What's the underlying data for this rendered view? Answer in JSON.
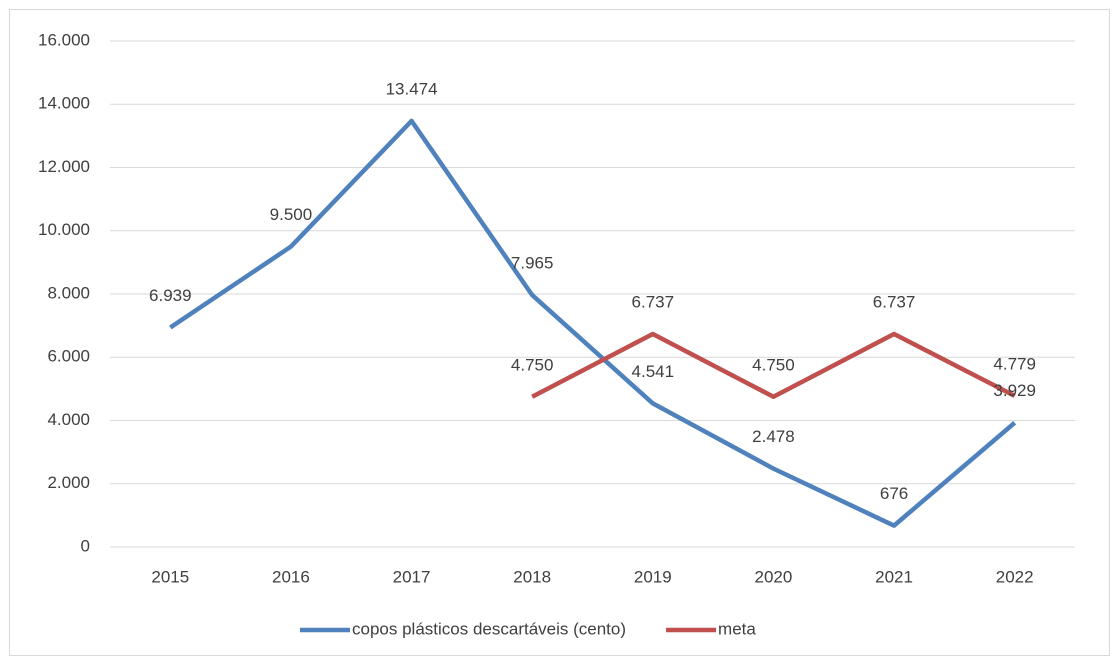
{
  "chart_data": {
    "type": "line",
    "categories": [
      "2015",
      "2016",
      "2017",
      "2018",
      "2019",
      "2020",
      "2021",
      "2022"
    ],
    "series": [
      {
        "name": "copos plásticos descartáveis (cento)",
        "color": "#4f81bd",
        "values": [
          6939,
          9500,
          13474,
          7965,
          4541,
          2478,
          676,
          3929
        ],
        "value_labels": [
          "6.939",
          "9.500",
          "13.474",
          "7.965",
          "4.541",
          "2.478",
          "676",
          "3.929"
        ]
      },
      {
        "name": "meta",
        "color": "#c0504d",
        "values": [
          null,
          null,
          null,
          4750,
          6737,
          4750,
          6737,
          4779
        ],
        "value_labels": [
          null,
          null,
          null,
          "4.750",
          "6.737",
          "4.750",
          "6.737",
          "4.779"
        ]
      }
    ],
    "ylim": [
      0,
      16000
    ],
    "yticks": [
      0,
      {
        "value": 2000,
        "label": "2.000"
      },
      {
        "value": 4000,
        "label": "4.000"
      },
      {
        "value": 6000,
        "label": "6.000"
      },
      {
        "value": 8000,
        "label": "8.000"
      },
      {
        "value": 10000,
        "label": "10.000"
      },
      {
        "value": 12000,
        "label": "12.000"
      },
      {
        "value": 14000,
        "label": "14.000"
      },
      {
        "value": 16000,
        "label": "16.000"
      }
    ],
    "grid": true,
    "legend": "bottom"
  }
}
